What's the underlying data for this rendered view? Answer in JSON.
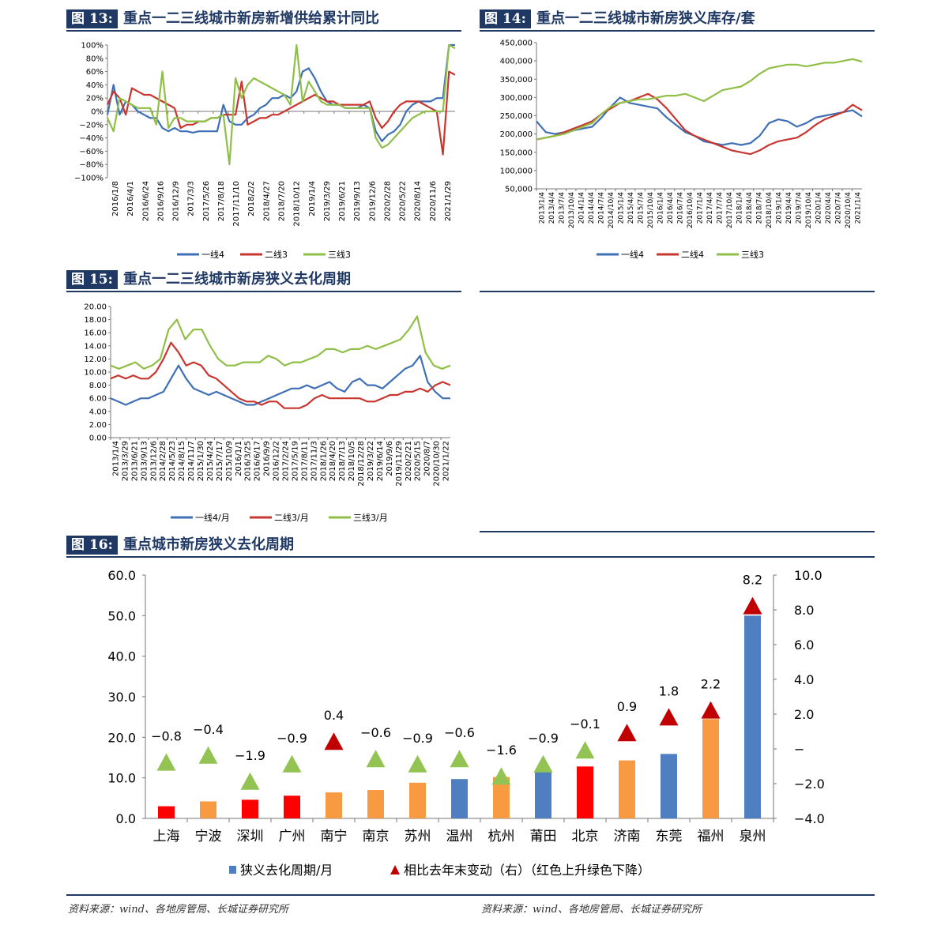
{
  "colors": {
    "header_bg": "#1f3864",
    "line_tier1": "#3f6fb5",
    "line_tier2": "#c8362f",
    "line_tier3": "#8fbf47",
    "bar_blue": "#4f7ec1",
    "bar_red": "#ff0000",
    "bar_orange": "#f79a41",
    "tri_red": "#c00000",
    "tri_green": "#92c353"
  },
  "fig13": {
    "num": "图 13:",
    "title": "重点一二三线城市新房新增供给累计同比",
    "chart_data": {
      "type": "line",
      "ylim": [
        -100,
        100
      ],
      "y_ticks": [
        "100%",
        "80%",
        "60%",
        "40%",
        "20%",
        "0%",
        "−20%",
        "−40%",
        "−60%",
        "−80%",
        "−100%"
      ],
      "x_labels": [
        "2016/1/8",
        "2016/4/1",
        "2016/6/24",
        "2016/9/16",
        "2016/12/9",
        "2017/3/3",
        "2017/5/26",
        "2017/8/18",
        "2017/11/10",
        "2018/2/2",
        "2018/4/27",
        "2018/7/20",
        "2018/10/12",
        "2019/1/4",
        "2019/3/29",
        "2019/6/21",
        "2019/9/13",
        "2019/12/6",
        "2020/2/28",
        "2020/5/22",
        "2020/8/14",
        "2020/11/6",
        "2021/1/29"
      ],
      "series": [
        {
          "name": "一线4",
          "color": "#3f6fb5",
          "values": [
            -5,
            40,
            -5,
            15,
            10,
            0,
            -5,
            -10,
            -10,
            -25,
            -30,
            -25,
            -30,
            -30,
            -32,
            -30,
            -30,
            -30,
            -30,
            10,
            -15,
            -20,
            -20,
            -10,
            -5,
            5,
            10,
            20,
            20,
            25,
            20,
            30,
            60,
            65,
            50,
            30,
            15,
            10,
            10,
            5,
            5,
            5,
            10,
            5,
            -30,
            -45,
            -35,
            -30,
            -20,
            0,
            10,
            15,
            15,
            15,
            20,
            20,
            100,
            100
          ]
        },
        {
          "name": "二线3",
          "color": "#c8362f",
          "values": [
            10,
            30,
            20,
            -5,
            35,
            30,
            25,
            25,
            20,
            15,
            10,
            5,
            -25,
            -20,
            -20,
            -15,
            -15,
            -10,
            -10,
            -5,
            -5,
            -5,
            45,
            -20,
            -15,
            -10,
            -10,
            -5,
            -5,
            0,
            5,
            10,
            15,
            20,
            25,
            20,
            15,
            15,
            10,
            10,
            10,
            10,
            10,
            15,
            -10,
            -25,
            -15,
            0,
            10,
            15,
            15,
            15,
            10,
            5,
            0,
            -65,
            60,
            55
          ]
        },
        {
          "name": "三线3",
          "color": "#8fbf47",
          "values": [
            -10,
            -30,
            20,
            15,
            10,
            5,
            5,
            5,
            -20,
            60,
            -25,
            -10,
            -10,
            -15,
            -15,
            -15,
            -15,
            -10,
            -10,
            -5,
            -80,
            50,
            20,
            40,
            50,
            45,
            40,
            35,
            30,
            25,
            10,
            100,
            15,
            45,
            30,
            15,
            10,
            10,
            10,
            5,
            5,
            5,
            5,
            5,
            -40,
            -55,
            -50,
            -40,
            -30,
            -20,
            -10,
            -5,
            0,
            0,
            0,
            0,
            100,
            95
          ]
        }
      ],
      "legend": [
        "一线4",
        "二线3",
        "三线3"
      ]
    }
  },
  "fig14": {
    "num": "图 14:",
    "title": "重点一二三线城市新房狭义库存/套",
    "chart_data": {
      "type": "line",
      "ylim": [
        50000,
        450000
      ],
      "y_ticks": [
        "450,000",
        "400,000",
        "350,000",
        "300,000",
        "250,000",
        "200,000",
        "150,000",
        "100,000",
        "50,000"
      ],
      "x_labels": [
        "2013/1/4",
        "2013/4/4",
        "2013/7/4",
        "2013/10/4",
        "2014/1/4",
        "2014/4/4",
        "2014/7/4",
        "2014/10/4",
        "2015/1/4",
        "2015/4/4",
        "2015/7/4",
        "2015/10/4",
        "2016/1/4",
        "2016/4/4",
        "2016/7/4",
        "2016/10/4",
        "2017/1/4",
        "2017/4/4",
        "2017/7/4",
        "2017/10/4",
        "2018/1/4",
        "2018/4/4",
        "2018/7/4",
        "2018/10/4",
        "2019/1/4",
        "2019/4/4",
        "2019/7/4",
        "2019/10/4",
        "2020/1/4",
        "2020/4/4",
        "2020/7/4",
        "2020/10/4",
        "2021/1/4"
      ],
      "series": [
        {
          "name": "一线4",
          "color": "#3f6fb5",
          "values": [
            235000,
            205000,
            200000,
            205000,
            210000,
            215000,
            220000,
            245000,
            275000,
            300000,
            285000,
            280000,
            275000,
            270000,
            245000,
            225000,
            205000,
            195000,
            180000,
            175000,
            170000,
            175000,
            170000,
            175000,
            195000,
            230000,
            240000,
            235000,
            220000,
            230000,
            245000,
            250000,
            255000,
            260000,
            265000,
            248000
          ]
        },
        {
          "name": "二线4",
          "color": "#c8362f",
          "values": [
            185000,
            190000,
            195000,
            205000,
            215000,
            225000,
            235000,
            255000,
            270000,
            285000,
            290000,
            300000,
            310000,
            295000,
            270000,
            240000,
            210000,
            195000,
            185000,
            175000,
            165000,
            155000,
            150000,
            145000,
            155000,
            170000,
            180000,
            185000,
            190000,
            205000,
            225000,
            240000,
            250000,
            260000,
            280000,
            265000
          ]
        },
        {
          "name": "三线3",
          "color": "#8fbf47",
          "values": [
            185000,
            190000,
            195000,
            200000,
            210000,
            220000,
            230000,
            255000,
            275000,
            285000,
            290000,
            295000,
            295000,
            300000,
            305000,
            305000,
            310000,
            300000,
            290000,
            305000,
            320000,
            325000,
            330000,
            345000,
            365000,
            380000,
            385000,
            390000,
            390000,
            385000,
            390000,
            395000,
            395000,
            400000,
            405000,
            398000
          ]
        }
      ],
      "legend": [
        "一线4",
        "二线4",
        "三线3"
      ]
    }
  },
  "fig15": {
    "num": "图 15:",
    "title": "重点一二三线城市新房狭义去化周期",
    "chart_data": {
      "type": "line",
      "ylim": [
        0,
        20
      ],
      "y_ticks": [
        "20.00",
        "18.00",
        "16.00",
        "14.00",
        "12.00",
        "10.00",
        "8.00",
        "6.00",
        "4.00",
        "2.00",
        "0.00"
      ],
      "x_labels": [
        "2013/1/4",
        "2013/3/29",
        "2013/6/21",
        "2013/9/13",
        "2013/12/6",
        "2014/2/28",
        "2014/5/23",
        "2014/8/15",
        "2014/11/7",
        "2015/1/30",
        "2015/4/24",
        "2015/7/17",
        "2015/10/9",
        "2016/1/1",
        "2016/3/25",
        "2016/6/17",
        "2016/9/9",
        "2016/12/2",
        "2017/2/24",
        "2017/5/19",
        "2017/8/11",
        "2017/11/3",
        "2018/1/26",
        "2018/4/20",
        "2018/7/13",
        "2018/10/5",
        "2018/12/28",
        "2019/3/22",
        "2019/6/14",
        "2019/9/6",
        "2019/11/29",
        "2020/2/21",
        "2020/5/15",
        "2020/8/7",
        "2020/10/30",
        "2021/1/22"
      ],
      "series": [
        {
          "name": "一线4/月",
          "color": "#3f6fb5",
          "values": [
            6.0,
            5.5,
            5.0,
            5.5,
            6.0,
            6.0,
            6.5,
            7.0,
            9.0,
            11.0,
            9.0,
            7.5,
            7.0,
            6.5,
            7.0,
            6.5,
            6.0,
            5.5,
            5.0,
            5.0,
            5.5,
            6.0,
            6.5,
            7.0,
            7.5,
            7.5,
            8.0,
            7.5,
            8.0,
            8.5,
            7.5,
            7.0,
            8.5,
            9.0,
            8.0,
            8.0,
            7.5,
            8.5,
            9.5,
            10.5,
            11.0,
            12.5,
            8.5,
            7.0,
            6.0,
            6.0
          ]
        },
        {
          "name": "二线3/月",
          "color": "#c8362f",
          "values": [
            9.0,
            9.5,
            9.0,
            9.5,
            9.0,
            9.0,
            10.0,
            12.0,
            14.5,
            13.0,
            11.0,
            11.5,
            11.0,
            9.5,
            9.0,
            8.0,
            7.0,
            6.0,
            5.5,
            5.5,
            5.0,
            5.5,
            5.5,
            4.5,
            4.5,
            4.5,
            5.0,
            6.0,
            6.5,
            6.0,
            6.0,
            6.0,
            6.0,
            6.0,
            5.5,
            5.5,
            6.0,
            6.5,
            6.5,
            7.0,
            7.0,
            7.5,
            7.0,
            8.0,
            8.5,
            8.0
          ]
        },
        {
          "name": "三线3/月",
          "color": "#8fbf47",
          "values": [
            11.0,
            10.5,
            11.0,
            11.5,
            10.5,
            11.0,
            12.0,
            16.5,
            18.0,
            15.0,
            16.5,
            16.5,
            14.0,
            12.0,
            11.0,
            11.0,
            11.5,
            11.5,
            11.5,
            12.5,
            12.0,
            11.0,
            11.5,
            11.5,
            12.0,
            12.5,
            13.5,
            13.5,
            13.0,
            13.5,
            13.5,
            14.0,
            13.5,
            14.0,
            14.5,
            15.0,
            16.5,
            18.5,
            13.0,
            11.0,
            10.5,
            11.0
          ]
        }
      ],
      "legend": [
        "一线4/月",
        "二线3/月",
        "三线3/月"
      ]
    }
  },
  "fig16": {
    "num": "图 16:",
    "title": "重点城市新房狭义去化周期",
    "chart_data": {
      "type": "bar",
      "categories": [
        "上海",
        "宁波",
        "深圳",
        "广州",
        "南宁",
        "南京",
        "苏州",
        "温州",
        "杭州",
        "莆田",
        "北京",
        "济南",
        "东莞",
        "福州",
        "泉州"
      ],
      "bar_values": [
        3.0,
        4.2,
        4.6,
        5.6,
        6.4,
        7.0,
        8.8,
        9.7,
        10.2,
        12.0,
        12.8,
        14.3,
        15.9,
        24.5,
        50.0
      ],
      "bar_colors": [
        "#ff0000",
        "#f79a41",
        "#ff0000",
        "#ff0000",
        "#f79a41",
        "#f79a41",
        "#f79a41",
        "#4f7ec1",
        "#f79a41",
        "#4f7ec1",
        "#ff0000",
        "#f79a41",
        "#4f7ec1",
        "#f79a41",
        "#4f7ec1"
      ],
      "change_values": [
        -0.8,
        -0.4,
        -1.9,
        -0.9,
        0.4,
        -0.6,
        -0.9,
        -0.6,
        -1.6,
        -0.9,
        -0.1,
        0.9,
        1.8,
        2.2,
        8.2
      ],
      "change_labels": [
        "−0.8",
        "−0.4",
        "−1.9",
        "−0.9",
        "0.4",
        "−0.6",
        "−0.9",
        "−0.6",
        "−1.6",
        "−0.9",
        "−0.1",
        "0.9",
        "1.8",
        "2.2",
        "8.2"
      ],
      "left_ylim": [
        0,
        60
      ],
      "left_ticks": [
        "60.0",
        "50.0",
        "40.0",
        "30.0",
        "20.0",
        "10.0",
        "0.0"
      ],
      "right_ylim": [
        -4,
        10
      ],
      "right_ticks": [
        "10.0",
        "8.0",
        "6.0",
        "4.0",
        "2.0",
        "−",
        "−2.0",
        "−4.0"
      ],
      "legend_bar": "狭义去化周期/月",
      "legend_tri": "相比去年末变动（右）（红色上升绿色下降）"
    }
  },
  "sources": {
    "left": "资料来源：wind、各地房管局、长城证券研究所",
    "right": "资料来源：wind、各地房管局、长城证券研究所"
  }
}
